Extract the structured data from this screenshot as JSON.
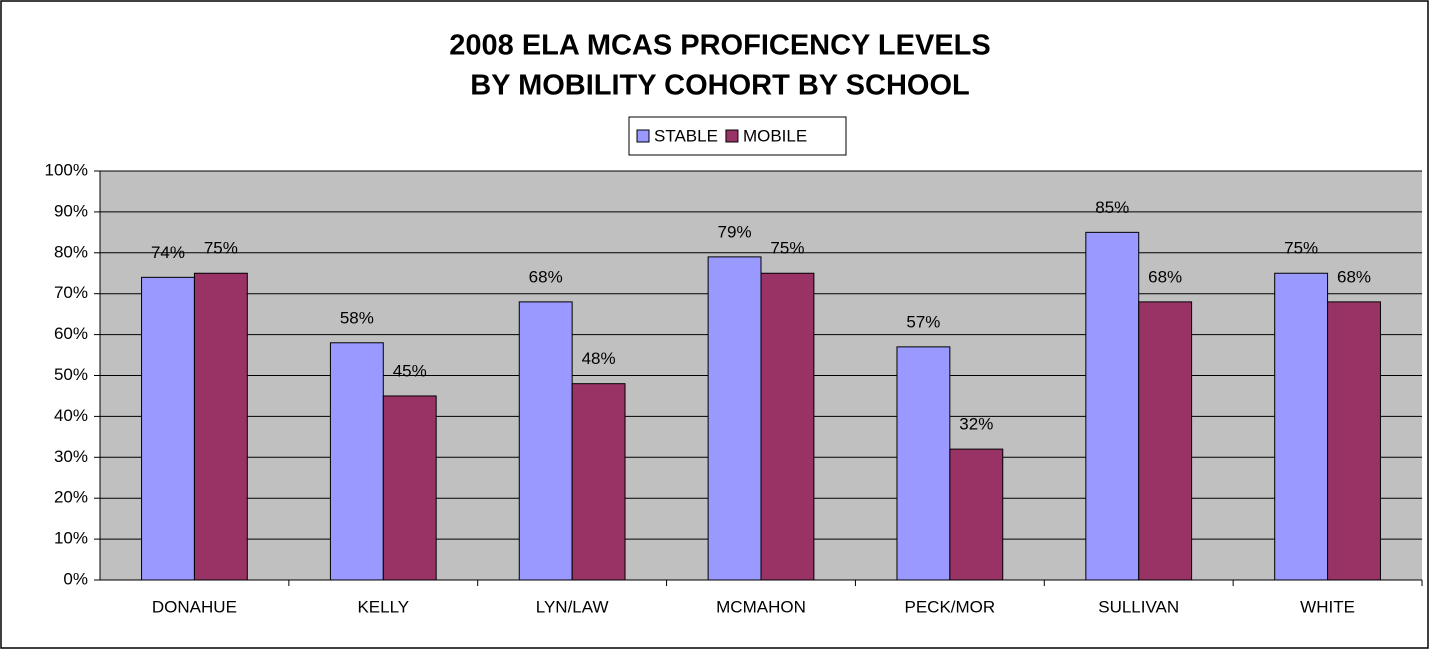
{
  "chart_data": {
    "type": "bar",
    "title": [
      "2008 ELA MCAS PROFICENCY LEVELS",
      "BY MOBILITY COHORT BY SCHOOL"
    ],
    "categories": [
      "DONAHUE",
      "KELLY",
      "LYN/LAW",
      "MCMAHON",
      "PECK/MOR",
      "SULLIVAN",
      "WHITE"
    ],
    "series": [
      {
        "name": "STABLE",
        "color": "#9999ff",
        "values": [
          74,
          58,
          68,
          79,
          57,
          85,
          75
        ],
        "value_labels": [
          "74%",
          "58%",
          "68%",
          "79%",
          "57%",
          "85%",
          "75%"
        ]
      },
      {
        "name": "MOBILE",
        "color": "#993366",
        "values": [
          75,
          45,
          48,
          75,
          32,
          68,
          68
        ],
        "value_labels": [
          "75%",
          "45%",
          "48%",
          "75%",
          "32%",
          "68%",
          "68%"
        ]
      }
    ],
    "ylim": [
      0,
      100
    ],
    "yticks": [
      {
        "value": 0,
        "label": "0%"
      },
      {
        "value": 10,
        "label": "10%"
      },
      {
        "value": 20,
        "label": "20%"
      },
      {
        "value": 30,
        "label": "30%"
      },
      {
        "value": 40,
        "label": "40%"
      },
      {
        "value": 50,
        "label": "50%"
      },
      {
        "value": 60,
        "label": "60%"
      },
      {
        "value": 70,
        "label": "70%"
      },
      {
        "value": 80,
        "label": "80%"
      },
      {
        "value": 90,
        "label": "90%"
      },
      {
        "value": 100,
        "label": "100%"
      }
    ],
    "grid": true,
    "legend": "top"
  }
}
